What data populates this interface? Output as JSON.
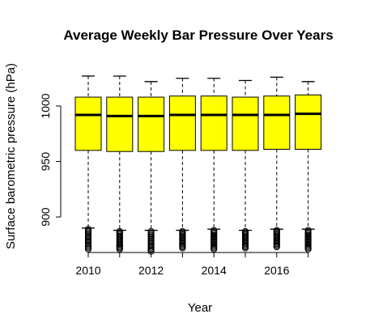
{
  "chart_data": {
    "type": "boxplot",
    "title": "Average Weekly Bar Pressure Over Years",
    "xlabel": "Year",
    "ylabel": "Surface barometric pressure (hPa)",
    "ylim": [
      868,
      1035
    ],
    "yticks": [
      900,
      950,
      1000
    ],
    "categories": [
      "2010",
      "2011",
      "2012",
      "2013",
      "2014",
      "2015",
      "2016",
      "2017"
    ],
    "xtick_labels_shown": [
      "2010",
      "2012",
      "2014",
      "2016"
    ],
    "box_color": "#ffff00",
    "outline_color": "#000000",
    "boxes": [
      {
        "year": "2010",
        "whisker_low": 890,
        "q1": 960,
        "median": 992,
        "q3": 1008,
        "whisker_high": 1027,
        "outliers_min": 871,
        "outliers_max": 889
      },
      {
        "year": "2011",
        "whisker_low": 888,
        "q1": 959,
        "median": 991,
        "q3": 1008,
        "whisker_high": 1027,
        "outliers_min": 871,
        "outliers_max": 887
      },
      {
        "year": "2012",
        "whisker_low": 888,
        "q1": 959,
        "median": 991,
        "q3": 1008,
        "whisker_high": 1022,
        "outliers_min": 869,
        "outliers_max": 887
      },
      {
        "year": "2013",
        "whisker_low": 888,
        "q1": 960,
        "median": 992,
        "q3": 1009,
        "whisker_high": 1025,
        "outliers_min": 872,
        "outliers_max": 887
      },
      {
        "year": "2014",
        "whisker_low": 889,
        "q1": 960,
        "median": 992,
        "q3": 1009,
        "whisker_high": 1025,
        "outliers_min": 871,
        "outliers_max": 888
      },
      {
        "year": "2015",
        "whisker_low": 888,
        "q1": 960,
        "median": 992,
        "q3": 1008,
        "whisker_high": 1023,
        "outliers_min": 872,
        "outliers_max": 887
      },
      {
        "year": "2016",
        "whisker_low": 889,
        "q1": 961,
        "median": 992,
        "q3": 1009,
        "whisker_high": 1026,
        "outliers_min": 873,
        "outliers_max": 888
      },
      {
        "year": "2017",
        "whisker_low": 889,
        "q1": 961,
        "median": 993,
        "q3": 1010,
        "whisker_high": 1022,
        "outliers_min": 871,
        "outliers_max": 888
      }
    ]
  }
}
